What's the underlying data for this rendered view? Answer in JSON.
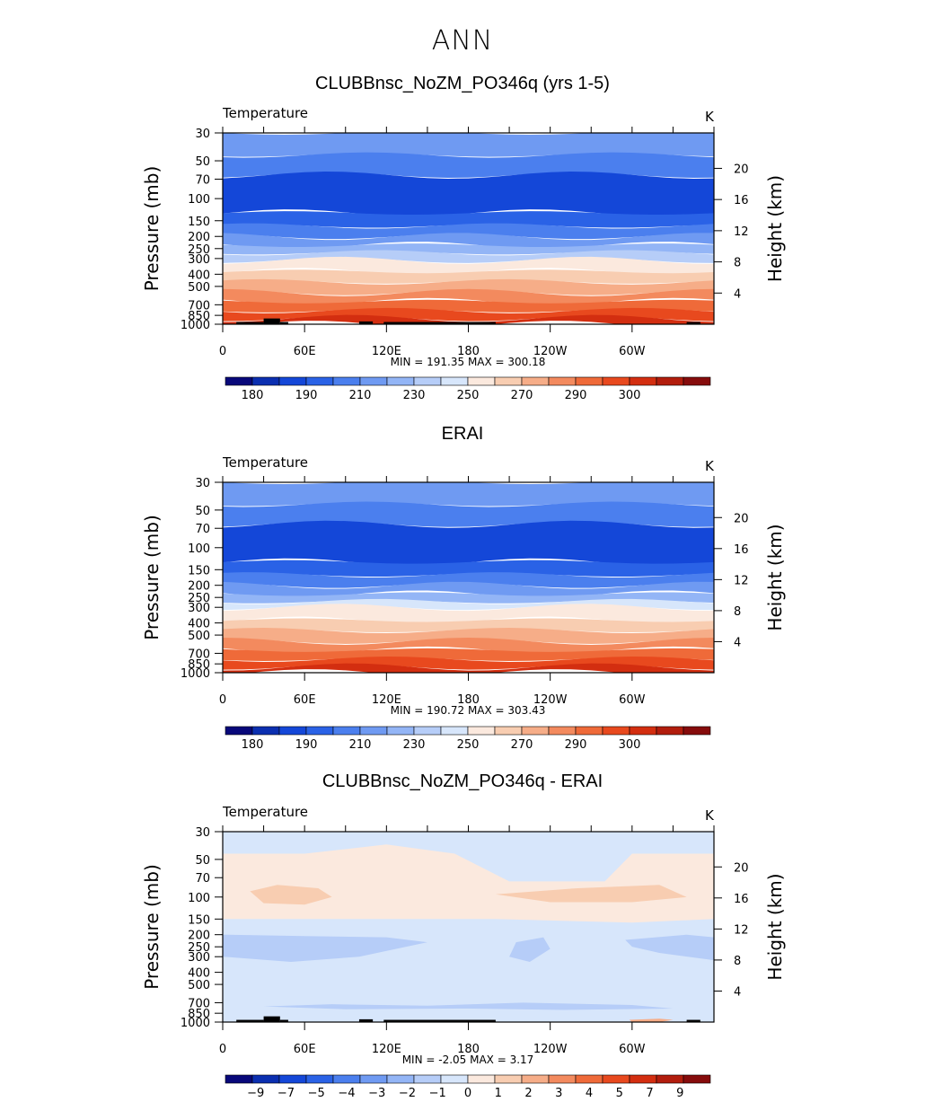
{
  "figure_title": "ANN",
  "levels_bar": {
    "pressure_ticks": [
      "30",
      "50",
      "70",
      "100",
      "150",
      "200",
      "250",
      "300",
      "400",
      "500",
      "700",
      "850",
      "1000"
    ],
    "height_ticks": [
      "4",
      "8",
      "12",
      "16",
      "20"
    ],
    "lon_ticks": [
      "0",
      "60E",
      "120E",
      "180",
      "120W",
      "60W"
    ]
  },
  "colors": {
    "temp_palette": [
      "#08087a",
      "#0b2fb0",
      "#1447d8",
      "#2a62e6",
      "#4b7fee",
      "#6f9af2",
      "#93b5f6",
      "#b6cdf8",
      "#d7e6fb",
      "#fbe9de",
      "#f8cdb1",
      "#f6ad88",
      "#f38a5e",
      "#ef6a39",
      "#e8491e",
      "#d32e10",
      "#b21d0d",
      "#860c0c"
    ],
    "diff_palette": [
      "#08087a",
      "#0b2fb0",
      "#1447d8",
      "#2a62e6",
      "#4b7fee",
      "#6f9af2",
      "#93b5f6",
      "#b6cdf8",
      "#d7e6fb",
      "#fbe9de",
      "#f8cdb1",
      "#f6ad88",
      "#f38a5e",
      "#ef6a39",
      "#e8491e",
      "#d32e10",
      "#b21d0d",
      "#860c0c"
    ]
  },
  "chart_data": [
    {
      "type": "heatmap",
      "title": "CLUBBnsc_NoZM_PO346q (yrs 1-5)",
      "subtitle": "Temperature",
      "units": "K",
      "ylabel": "Pressure (mb)",
      "ylabel_right": "Height (km)",
      "x": [
        "0",
        "60E",
        "120E",
        "180",
        "120W",
        "60W"
      ],
      "y_pressure": [
        30,
        50,
        70,
        100,
        150,
        200,
        250,
        300,
        400,
        500,
        700,
        850,
        1000
      ],
      "y_height_km": [
        4,
        8,
        12,
        16,
        20
      ],
      "stats": "MIN =  191.35   MAX =  300.18",
      "min": 191.35,
      "max": 300.18,
      "colorbar_labels": [
        "180",
        "190",
        "210",
        "230",
        "250",
        "270",
        "290",
        "300"
      ],
      "layers": [
        {
          "p_top": 30,
          "p_bottom": 45,
          "bin": 5
        },
        {
          "p_top": 45,
          "p_bottom": 65,
          "bin": 4
        },
        {
          "p_top": 65,
          "p_bottom": 130,
          "bin": 2
        },
        {
          "p_top": 130,
          "p_bottom": 165,
          "bin": 3
        },
        {
          "p_top": 165,
          "p_bottom": 200,
          "bin": 4
        },
        {
          "p_top": 200,
          "p_bottom": 235,
          "bin": 5
        },
        {
          "p_top": 235,
          "p_bottom": 270,
          "bin": 6
        },
        {
          "p_top": 270,
          "p_bottom": 310,
          "bin": 7
        },
        {
          "p_top": 310,
          "p_bottom": 380,
          "bin": 9
        },
        {
          "p_top": 380,
          "p_bottom": 460,
          "bin": 10
        },
        {
          "p_top": 460,
          "p_bottom": 560,
          "bin": 11
        },
        {
          "p_top": 560,
          "p_bottom": 660,
          "bin": 12
        },
        {
          "p_top": 660,
          "p_bottom": 780,
          "bin": 13
        },
        {
          "p_top": 780,
          "p_bottom": 900,
          "bin": 14
        },
        {
          "p_top": 900,
          "p_bottom": 1000,
          "bin": 15
        }
      ],
      "topography": [
        [
          10,
          40
        ],
        [
          30,
          40
        ],
        [
          30,
          30
        ],
        [
          42,
          30
        ],
        [
          42,
          40
        ],
        [
          48,
          40
        ],
        [
          100,
          40
        ],
        [
          110,
          40
        ],
        [
          118,
          40
        ],
        [
          200,
          40
        ],
        [
          340,
          40
        ],
        [
          350,
          40
        ]
      ]
    },
    {
      "type": "heatmap",
      "title": "ERAI",
      "subtitle": "Temperature",
      "units": "K",
      "ylabel": "Pressure (mb)",
      "ylabel_right": "Height (km)",
      "x": [
        "0",
        "60E",
        "120E",
        "180",
        "120W",
        "60W"
      ],
      "y_pressure": [
        30,
        50,
        70,
        100,
        150,
        200,
        250,
        300,
        400,
        500,
        700,
        850,
        1000
      ],
      "y_height_km": [
        4,
        8,
        12,
        16,
        20
      ],
      "stats": "MIN =  190.72   MAX =  303.43",
      "min": 190.72,
      "max": 303.43,
      "colorbar_labels": [
        "180",
        "190",
        "210",
        "230",
        "250",
        "270",
        "290",
        "300"
      ],
      "layers": [
        {
          "p_top": 30,
          "p_bottom": 45,
          "bin": 5
        },
        {
          "p_top": 45,
          "p_bottom": 65,
          "bin": 4
        },
        {
          "p_top": 65,
          "p_bottom": 130,
          "bin": 2
        },
        {
          "p_top": 130,
          "p_bottom": 165,
          "bin": 3
        },
        {
          "p_top": 165,
          "p_bottom": 200,
          "bin": 4
        },
        {
          "p_top": 200,
          "p_bottom": 235,
          "bin": 5
        },
        {
          "p_top": 235,
          "p_bottom": 270,
          "bin": 6
        },
        {
          "p_top": 270,
          "p_bottom": 300,
          "bin": 8
        },
        {
          "p_top": 300,
          "p_bottom": 380,
          "bin": 9
        },
        {
          "p_top": 380,
          "p_bottom": 460,
          "bin": 10
        },
        {
          "p_top": 460,
          "p_bottom": 560,
          "bin": 11
        },
        {
          "p_top": 560,
          "p_bottom": 660,
          "bin": 12
        },
        {
          "p_top": 660,
          "p_bottom": 780,
          "bin": 13
        },
        {
          "p_top": 780,
          "p_bottom": 900,
          "bin": 14
        },
        {
          "p_top": 900,
          "p_bottom": 1000,
          "bin": 15
        }
      ],
      "topography": []
    },
    {
      "type": "heatmap",
      "title": "CLUBBnsc_NoZM_PO346q - ERAI",
      "subtitle": "Temperature",
      "units": "K",
      "ylabel": "Pressure (mb)",
      "ylabel_right": "Height (km)",
      "x": [
        "0",
        "60E",
        "120E",
        "180",
        "120W",
        "60W"
      ],
      "y_pressure": [
        30,
        50,
        70,
        100,
        150,
        200,
        250,
        300,
        400,
        500,
        700,
        850,
        1000
      ],
      "y_height_km": [
        4,
        8,
        12,
        16,
        20
      ],
      "stats": "MIN =   -2.05   MAX =    3.17",
      "min": -2.05,
      "max": 3.17,
      "colorbar_labels": [
        "-9",
        "-7",
        "-5",
        "-4",
        "-3",
        "-2",
        "-1",
        "0",
        "1",
        "2",
        "3",
        "4",
        "5",
        "7",
        "9"
      ],
      "background_bin": 8,
      "regions": [
        {
          "bin": 9,
          "points": [
            [
              0,
              45
            ],
            [
              60,
              45
            ],
            [
              120,
              38
            ],
            [
              170,
              45
            ],
            [
              210,
              75
            ],
            [
              280,
              75
            ],
            [
              300,
              45
            ],
            [
              360,
              45
            ],
            [
              360,
              150
            ],
            [
              300,
              160
            ],
            [
              200,
              150
            ],
            [
              120,
              150
            ],
            [
              60,
              150
            ],
            [
              0,
              150
            ]
          ]
        },
        {
          "bin": 10,
          "points": [
            [
              20,
              90
            ],
            [
              40,
              80
            ],
            [
              70,
              85
            ],
            [
              80,
              100
            ],
            [
              60,
              115
            ],
            [
              30,
              112
            ]
          ]
        },
        {
          "bin": 10,
          "points": [
            [
              200,
              95
            ],
            [
              260,
              85
            ],
            [
              320,
              80
            ],
            [
              340,
              100
            ],
            [
              300,
              110
            ],
            [
              240,
              110
            ]
          ]
        },
        {
          "bin": 7,
          "points": [
            [
              0,
              200
            ],
            [
              60,
              205
            ],
            [
              120,
              210
            ],
            [
              150,
              230
            ],
            [
              100,
              300
            ],
            [
              50,
              330
            ],
            [
              0,
              300
            ]
          ]
        },
        {
          "bin": 7,
          "points": [
            [
              215,
              230
            ],
            [
              235,
              210
            ],
            [
              240,
              260
            ],
            [
              225,
              330
            ],
            [
              210,
              300
            ]
          ]
        },
        {
          "bin": 7,
          "points": [
            [
              295,
              220
            ],
            [
              340,
              200
            ],
            [
              360,
              210
            ],
            [
              360,
              320
            ],
            [
              320,
              280
            ],
            [
              300,
              250
            ]
          ]
        },
        {
          "bin": 7,
          "points": [
            [
              30,
              750
            ],
            [
              80,
              720
            ],
            [
              150,
              740
            ],
            [
              220,
              700
            ],
            [
              300,
              730
            ],
            [
              330,
              780
            ],
            [
              250,
              800
            ],
            [
              180,
              780
            ],
            [
              90,
              790
            ]
          ]
        },
        {
          "bin": 11,
          "points": [
            [
              298,
              960
            ],
            [
              320,
              940
            ],
            [
              330,
              960
            ],
            [
              320,
              1000
            ],
            [
              300,
              1000
            ]
          ]
        }
      ],
      "topography": [
        [
          10,
          40
        ],
        [
          30,
          40
        ],
        [
          30,
          30
        ],
        [
          42,
          30
        ],
        [
          42,
          40
        ],
        [
          48,
          40
        ],
        [
          100,
          40
        ],
        [
          110,
          40
        ],
        [
          118,
          40
        ],
        [
          200,
          40
        ],
        [
          340,
          40
        ],
        [
          350,
          40
        ]
      ]
    }
  ]
}
